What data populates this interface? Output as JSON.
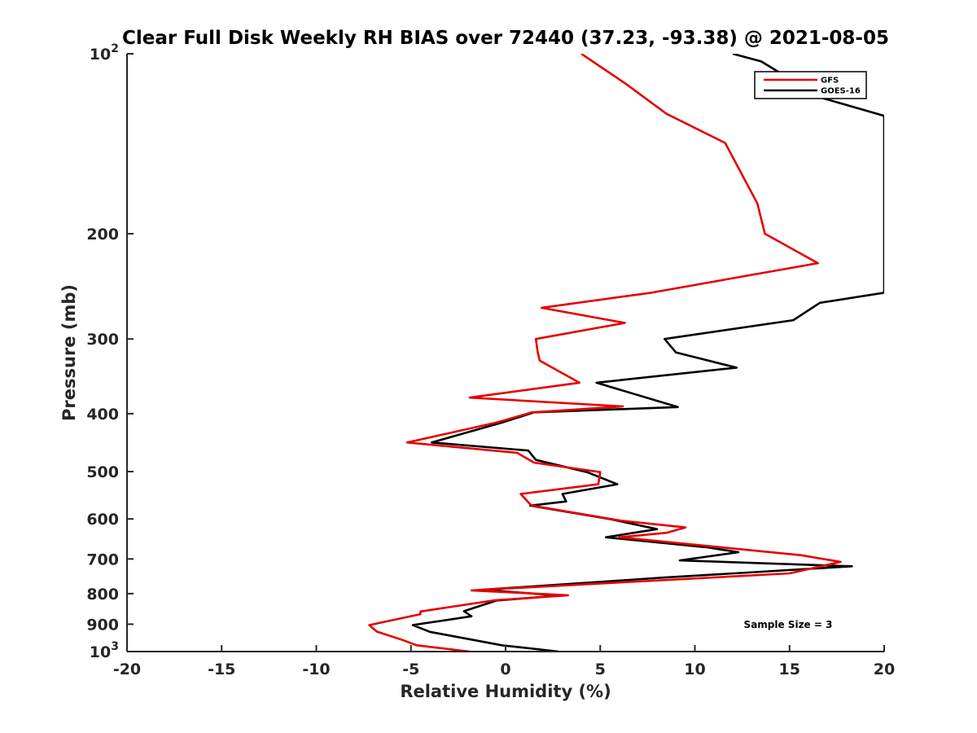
{
  "chart_data": {
    "type": "line",
    "title": "Clear Full Disk Weekly RH BIAS over 72440 (37.23, -93.38) @ 2021-08-05",
    "xlabel": "Relative Humidity (%)",
    "ylabel": "Pressure (mb)",
    "xlim": [
      -20,
      20
    ],
    "ylim": [
      100,
      1000
    ],
    "y_scale": "log",
    "y_reversed": true,
    "grid": false,
    "x_ticks": [
      -20,
      -15,
      -10,
      -5,
      0,
      5,
      10,
      15,
      20
    ],
    "x_tick_labels": [
      "-20",
      "-15",
      "-10",
      "-5",
      "0",
      "5",
      "10",
      "15",
      "20"
    ],
    "y_ticks": [
      {
        "value": 100,
        "base": "10",
        "exp": "2"
      },
      {
        "value": 200,
        "label": "200"
      },
      {
        "value": 300,
        "label": "300"
      },
      {
        "value": 400,
        "label": "400"
      },
      {
        "value": 500,
        "label": "500"
      },
      {
        "value": 600,
        "label": "600"
      },
      {
        "value": 700,
        "label": "700"
      },
      {
        "value": 800,
        "label": "800"
      },
      {
        "value": 900,
        "label": "900"
      },
      {
        "value": 1000,
        "base": "10",
        "exp": "3"
      }
    ],
    "legend_position": "top-right",
    "annotation": "Sample Size = 3",
    "series": [
      {
        "name": "GFS",
        "color": "#e60000",
        "points": [
          [
            4.0,
            100
          ],
          [
            6.3,
            112
          ],
          [
            8.5,
            126
          ],
          [
            11.6,
            141
          ],
          [
            13.3,
            178
          ],
          [
            13.7,
            200
          ],
          [
            16.5,
            224
          ],
          [
            7.7,
            251
          ],
          [
            1.9,
            266
          ],
          [
            6.3,
            282
          ],
          [
            1.6,
            300
          ],
          [
            1.7,
            316
          ],
          [
            1.8,
            326
          ],
          [
            3.9,
            355
          ],
          [
            -1.9,
            376
          ],
          [
            6.2,
            389
          ],
          [
            1.4,
            398
          ],
          [
            -0.5,
            414
          ],
          [
            -5.2,
            447
          ],
          [
            0.6,
            465
          ],
          [
            1.5,
            483
          ],
          [
            5.0,
            501
          ],
          [
            4.9,
            525
          ],
          [
            0.8,
            545
          ],
          [
            1.3,
            567
          ],
          [
            1.4,
            570
          ],
          [
            6.1,
            604
          ],
          [
            9.5,
            620
          ],
          [
            8.5,
            633
          ],
          [
            6.0,
            644
          ],
          [
            15.6,
            690
          ],
          [
            17.7,
            708
          ],
          [
            15.0,
            740
          ],
          [
            -1.8,
            790
          ],
          [
            3.3,
            805
          ],
          [
            -0.6,
            821
          ],
          [
            -4.5,
            857
          ],
          [
            -4.5,
            866
          ],
          [
            -7.2,
            903
          ],
          [
            -6.8,
            926
          ],
          [
            -5.5,
            955
          ],
          [
            -4.7,
            976
          ],
          [
            -1.9,
            1000
          ]
        ]
      },
      {
        "name": "GOES-16",
        "color": "#000000",
        "points": [
          [
            12.0,
            100
          ],
          [
            13.5,
            103
          ],
          [
            15.6,
            113
          ],
          [
            16.5,
            118
          ],
          [
            20.0,
            127
          ],
          [
            20.0,
            251
          ],
          [
            16.6,
            261
          ],
          [
            15.2,
            279
          ],
          [
            8.4,
            300
          ],
          [
            9.0,
            316
          ],
          [
            12.2,
            335
          ],
          [
            4.8,
            355
          ],
          [
            9.1,
            390
          ],
          [
            1.5,
            398
          ],
          [
            -0.2,
            414
          ],
          [
            -3.9,
            447
          ],
          [
            1.2,
            461
          ],
          [
            1.6,
            478
          ],
          [
            4.3,
            501
          ],
          [
            5.9,
            525
          ],
          [
            3.0,
            545
          ],
          [
            3.2,
            561
          ],
          [
            1.3,
            570
          ],
          [
            5.6,
            601
          ],
          [
            8.0,
            624
          ],
          [
            5.3,
            644
          ],
          [
            10.6,
            669
          ],
          [
            12.3,
            682
          ],
          [
            9.2,
            704
          ],
          [
            18.3,
            720
          ],
          [
            8.4,
            752
          ],
          [
            -1.2,
            788
          ],
          [
            2.8,
            806
          ],
          [
            -0.5,
            822
          ],
          [
            -2.2,
            856
          ],
          [
            -1.8,
            873
          ],
          [
            -4.9,
            903
          ],
          [
            -4.0,
            927
          ],
          [
            -1.8,
            955
          ],
          [
            -0.2,
            976
          ],
          [
            2.8,
            1000
          ]
        ]
      }
    ]
  }
}
